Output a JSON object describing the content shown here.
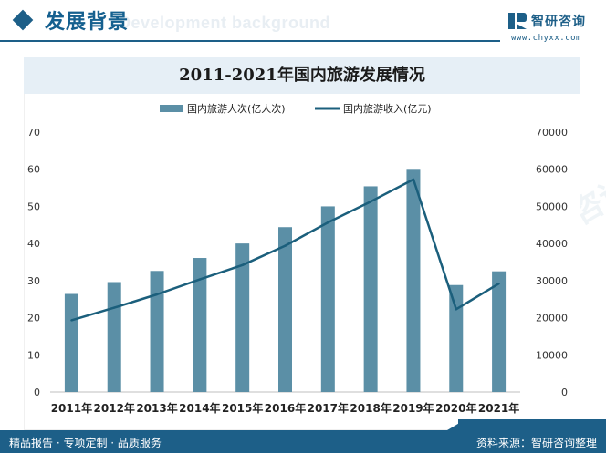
{
  "header": {
    "title": "发展背景",
    "bg_text": "Development background",
    "logo_name": "智研咨询",
    "logo_url": "www.chyxx.com"
  },
  "chart_data": {
    "type": "bar+line",
    "title": "2011-2021年国内旅游发展情况",
    "categories": [
      "2011年",
      "2012年",
      "2013年",
      "2014年",
      "2015年",
      "2016年",
      "2017年",
      "2018年",
      "2019年",
      "2020年",
      "2021年"
    ],
    "series": [
      {
        "name": "国内旅游人次(亿人次)",
        "type": "bar",
        "axis": "left",
        "values": [
          26.4,
          29.6,
          32.6,
          36.1,
          40.0,
          44.4,
          50.0,
          55.4,
          60.1,
          28.8,
          32.5
        ]
      },
      {
        "name": "国内旅游收入(亿元)",
        "type": "line",
        "axis": "right",
        "values": [
          19305,
          22706,
          26276,
          30312,
          34195,
          39390,
          45661,
          51278,
          57251,
          22286,
          29191
        ]
      }
    ],
    "y_left": {
      "min": 0,
      "max": 70,
      "ticks": [
        "0",
        "10",
        "20",
        "30",
        "40",
        "50",
        "60",
        "70"
      ]
    },
    "y_right": {
      "min": 0,
      "max": 70000,
      "ticks": [
        "0",
        "10000",
        "20000",
        "30000",
        "40000",
        "50000",
        "60000",
        "70000"
      ]
    },
    "legend_position": "top-center",
    "colors": {
      "bar": "#5b8fa6",
      "line": "#1b5f7c"
    }
  },
  "footer": {
    "left": "精品报告 · 专项定制 · 品质服务",
    "right": "资料来源：智研咨询整理"
  },
  "watermark_text": "智研咨询"
}
